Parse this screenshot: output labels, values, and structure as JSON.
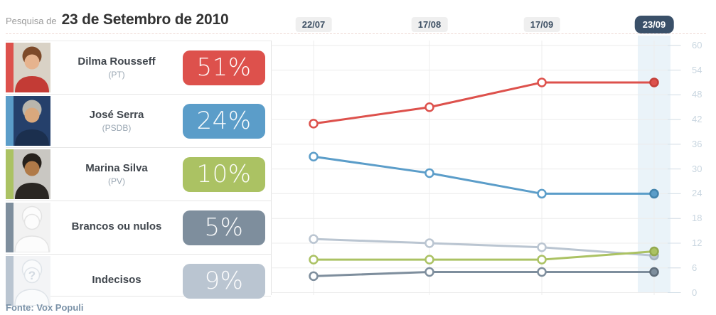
{
  "header": {
    "prefix": "Pesquisa de",
    "title": "23 de Setembro de 2010"
  },
  "dates": [
    {
      "label": "22/07",
      "active": false
    },
    {
      "label": "17/08",
      "active": false
    },
    {
      "label": "17/09",
      "active": false
    },
    {
      "label": "23/09",
      "active": true
    }
  ],
  "candidates": [
    {
      "name": "Dilma Rousseff",
      "party": "(PT)",
      "pct": "51%",
      "color": "#dd514c",
      "color_dark": "#c4403a",
      "avatar_type": "photo",
      "avatar_colors": {
        "bg": "#d9d2c6",
        "hair": "#7d4a2a",
        "skin": "#e6b38e",
        "body": "#c33b35"
      }
    },
    {
      "name": "José Serra",
      "party": "(PSDB)",
      "pct": "24%",
      "color": "#5b9dc9",
      "color_dark": "#4384ad",
      "avatar_type": "photo",
      "avatar_colors": {
        "bg": "#25406b",
        "hair": "#b9b6ad",
        "skin": "#d9a87d",
        "body": "#1b2f4e"
      }
    },
    {
      "name": "Marina Silva",
      "party": "(PV)",
      "pct": "10%",
      "color": "#abc263",
      "color_dark": "#93a94e",
      "avatar_type": "photo",
      "avatar_colors": {
        "bg": "#c9c7c2",
        "hair": "#26211c",
        "skin": "#b07a48",
        "body": "#2a2622"
      }
    },
    {
      "name": "Brancos ou nulos",
      "party": "",
      "pct": "5%",
      "color": "#7e8e9d",
      "color_dark": "#667482",
      "avatar_type": "silhouette",
      "avatar_colors": {
        "bg": "#f2f2f2",
        "hair": "#fcfcfc",
        "skin": "#fcfcfc",
        "body": "#fcfcfc",
        "outline": "#e3e3e3"
      }
    },
    {
      "name": "Indecisos",
      "party": "",
      "pct": "9%",
      "color": "#bac5d1",
      "color_dark": "#a3b1bf",
      "avatar_type": "silhouette-question",
      "avatar_colors": {
        "bg": "#f3f4f6",
        "hair": "#fafbfc",
        "skin": "#fafbfc",
        "body": "#fafbfc",
        "outline": "#dfe4e9",
        "q": "#d3dae2"
      }
    }
  ],
  "chart_data": {
    "type": "line",
    "title": "Pesquisa de 23 de Setembro de 2010",
    "x": [
      "22/07",
      "17/08",
      "17/09",
      "23/09"
    ],
    "series": [
      {
        "name": "Dilma Rousseff",
        "color": "#dd514c",
        "color_dark": "#c4403a",
        "values": [
          41,
          45,
          51,
          51
        ]
      },
      {
        "name": "José Serra",
        "color": "#5b9dc9",
        "color_dark": "#4384ad",
        "values": [
          33,
          29,
          24,
          24
        ]
      },
      {
        "name": "Marina Silva",
        "color": "#abc263",
        "color_dark": "#93a94e",
        "values": [
          8,
          8,
          8,
          10
        ]
      },
      {
        "name": "Brancos ou nulos",
        "color": "#7e8e9d",
        "color_dark": "#5e6c79",
        "values": [
          4,
          5,
          5,
          5
        ]
      },
      {
        "name": "Indecisos",
        "color": "#bac5d1",
        "color_dark": "#a3b1bf",
        "values": [
          13,
          12,
          11,
          9
        ]
      }
    ],
    "ylim": [
      0,
      60
    ],
    "yticks": [
      60,
      54,
      48,
      42,
      36,
      30,
      24,
      18,
      12,
      6,
      0
    ],
    "grid": true,
    "legend_position": "left",
    "highlight_column": "23/09",
    "highlight_color": "#eaf3f9",
    "source": "Fonte: Vox Populi"
  },
  "footer": {
    "source": "Fonte: Vox Populi"
  }
}
